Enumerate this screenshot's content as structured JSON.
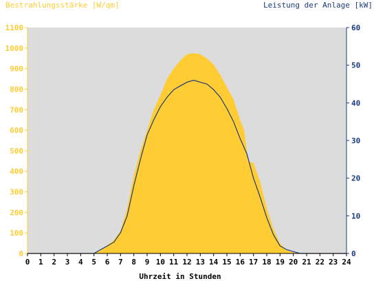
{
  "colors": {
    "background": "#ffffff",
    "plot_background": "#dcdcdc",
    "irradiance": "#ffcc33",
    "power": "#1a3a7a",
    "axis_left": "#ffcc33",
    "axis_right": "#1a3a7a",
    "axis_bottom": "#000000"
  },
  "chart_data": {
    "type": "area",
    "left_axis_title": "Bestrahlungsstärke [W/qm]",
    "right_axis_title": "Leistung der Anlage [kW]",
    "xlabel": "Uhrzeit in Stunden",
    "xlim": [
      0,
      24
    ],
    "ylim_left": [
      0,
      1100
    ],
    "ylim_right": [
      0,
      60
    ],
    "x_ticks": [
      "0",
      "1",
      "2",
      "3",
      "4",
      "5",
      "6",
      "7",
      "8",
      "9",
      "10",
      "11",
      "12",
      "13",
      "14",
      "15",
      "16",
      "17",
      "18",
      "19",
      "20",
      "21",
      "22",
      "23",
      "24"
    ],
    "y_left_ticks": [
      "0",
      "100",
      "200",
      "300",
      "400",
      "500",
      "600",
      "700",
      "800",
      "900",
      "1000",
      "1100"
    ],
    "y_right_ticks": [
      "0",
      "10",
      "20",
      "30",
      "40",
      "50",
      "60"
    ],
    "grid": false,
    "series": [
      {
        "axis": "left",
        "render": "area",
        "x": [
          0,
          5,
          5.5,
          6,
          6.5,
          7,
          7.5,
          8,
          8.5,
          9,
          9.5,
          10,
          10.5,
          11,
          11.5,
          12,
          12.5,
          13,
          13.5,
          14,
          14.5,
          15,
          15.5,
          16,
          16.3,
          16.6,
          17,
          17.5,
          18,
          18.5,
          19,
          19.5,
          20,
          20.5,
          21,
          24
        ],
        "values": [
          0,
          0,
          15,
          40,
          65,
          110,
          220,
          380,
          500,
          600,
          700,
          770,
          850,
          900,
          940,
          970,
          975,
          970,
          950,
          920,
          870,
          810,
          750,
          650,
          600,
          450,
          440,
          350,
          220,
          120,
          50,
          15,
          5,
          0,
          0,
          0
        ]
      },
      {
        "axis": "right",
        "render": "line",
        "x": [
          0,
          5,
          5.5,
          6,
          6.5,
          7,
          7.5,
          8,
          8.5,
          9,
          9.5,
          10,
          10.5,
          11,
          11.5,
          12,
          12.5,
          13,
          13.5,
          14,
          14.5,
          15,
          15.5,
          16,
          16.5,
          17,
          17.5,
          18,
          18.5,
          19,
          19.5,
          20,
          20.5,
          21,
          24
        ],
        "values": [
          0,
          0,
          1,
          2,
          3,
          5.5,
          10,
          18,
          25,
          31.5,
          35.5,
          39,
          41.5,
          43.5,
          44.5,
          45.5,
          46,
          45.5,
          45,
          43.5,
          41.5,
          38.5,
          35,
          30.5,
          26.5,
          20,
          15,
          9.5,
          5,
          2,
          1,
          0.5,
          0,
          0,
          0
        ]
      }
    ]
  }
}
